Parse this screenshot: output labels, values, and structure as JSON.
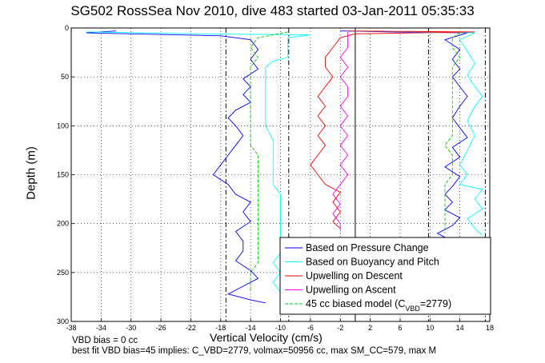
{
  "chart_data": {
    "type": "line",
    "title": "SG502 RossSea Nov 2010, dive 483 started 03-Jan-2011 05:35:33",
    "xlabel": "Vertical Velocity (cm/s)",
    "ylabel": "Depth (m)",
    "xlim": [
      -38,
      18
    ],
    "ylim": [
      0,
      300
    ],
    "y_reversed": true,
    "grid": true,
    "legend_placement": "bottom-right",
    "xticks": [
      "-38",
      "-34",
      "-30",
      "-26",
      "-22",
      "-18",
      "-14",
      "-10",
      "-6",
      "-2",
      "2",
      "6",
      "10",
      "14",
      "18"
    ],
    "yticks": [
      "0",
      "50",
      "100",
      "150",
      "200",
      "250",
      "300"
    ],
    "vertical_lines": [
      {
        "x": -17.3,
        "style": "dash-dot"
      },
      {
        "x": -8.9,
        "style": "dash-dot"
      },
      {
        "x": 0,
        "style": "solid"
      },
      {
        "x": 9.8,
        "style": "dash-dot"
      },
      {
        "x": 17.4,
        "style": "dash-dot"
      }
    ],
    "series": [
      {
        "name": "Based on Pressure Change",
        "color": "#0000ff",
        "descent": [
          [
            -32,
            3
          ],
          [
            -36,
            5
          ],
          [
            -30,
            6
          ],
          [
            -18,
            8
          ],
          [
            -14,
            12
          ],
          [
            -13,
            22
          ],
          [
            -14,
            32
          ],
          [
            -13,
            42
          ],
          [
            -15,
            52
          ],
          [
            -14,
            60
          ],
          [
            -15,
            68
          ],
          [
            -14,
            76
          ],
          [
            -16,
            84
          ],
          [
            -17,
            92
          ],
          [
            -16,
            100
          ],
          [
            -15,
            110
          ],
          [
            -16,
            120
          ],
          [
            -17,
            130
          ],
          [
            -18,
            140
          ],
          [
            -19,
            150
          ],
          [
            -17,
            160
          ],
          [
            -16,
            170
          ],
          [
            -14,
            178
          ],
          [
            -15,
            188
          ],
          [
            -14,
            198
          ],
          [
            -16,
            208
          ],
          [
            -15,
            218
          ],
          [
            -15,
            228
          ],
          [
            -16,
            238
          ],
          [
            -14,
            248
          ],
          [
            -13,
            256
          ],
          [
            -15,
            264
          ],
          [
            -17,
            272
          ],
          [
            -14,
            278
          ],
          [
            -12,
            281
          ]
        ],
        "ascent": [
          [
            -2,
            3
          ],
          [
            5,
            4
          ],
          [
            15,
            5
          ],
          [
            12,
            12
          ],
          [
            14,
            22
          ],
          [
            13,
            32
          ],
          [
            14,
            42
          ],
          [
            13,
            50
          ],
          [
            14,
            60
          ],
          [
            15,
            70
          ],
          [
            14,
            80
          ],
          [
            13,
            92
          ],
          [
            14,
            102
          ],
          [
            15,
            112
          ],
          [
            13,
            122
          ],
          [
            14,
            132
          ],
          [
            12,
            142
          ],
          [
            14,
            152
          ],
          [
            13,
            162
          ],
          [
            12,
            170
          ],
          [
            13,
            178
          ],
          [
            12,
            186
          ],
          [
            14,
            194
          ],
          [
            13,
            202
          ],
          [
            11,
            210
          ],
          [
            12,
            214
          ]
        ]
      },
      {
        "name": "Based on Buoyancy and Pitch",
        "color": "#00ffff",
        "descent": [
          [
            -36,
            4
          ],
          [
            -20,
            6
          ],
          [
            -6,
            7
          ],
          [
            -9,
            10
          ],
          [
            -9,
            20
          ],
          [
            -9,
            30
          ],
          [
            -11,
            34
          ],
          [
            -12,
            40
          ],
          [
            -12,
            55
          ],
          [
            -12,
            70
          ],
          [
            -12,
            85
          ],
          [
            -12,
            100
          ],
          [
            -11,
            115
          ],
          [
            -11,
            130
          ],
          [
            -11,
            145
          ],
          [
            -11,
            160
          ],
          [
            -10,
            170
          ],
          [
            -10,
            185
          ],
          [
            -10,
            200
          ],
          [
            -10,
            215
          ],
          [
            -10,
            230
          ],
          [
            -11,
            240
          ],
          [
            -10,
            250
          ],
          [
            -11,
            260
          ],
          [
            -10,
            270
          ],
          [
            -10,
            278
          ],
          [
            -8,
            280
          ]
        ],
        "ascent": [
          [
            -1,
            3
          ],
          [
            10,
            4
          ],
          [
            16,
            5
          ],
          [
            14,
            12
          ],
          [
            15,
            24
          ],
          [
            16,
            36
          ],
          [
            15,
            48
          ],
          [
            16,
            60
          ],
          [
            17,
            70
          ],
          [
            16,
            80
          ],
          [
            15,
            95
          ],
          [
            16,
            110
          ],
          [
            15,
            125
          ],
          [
            14,
            140
          ],
          [
            15,
            150
          ],
          [
            14,
            160
          ],
          [
            17,
            165
          ],
          [
            16,
            175
          ],
          [
            17,
            185
          ],
          [
            15,
            195
          ],
          [
            16,
            205
          ],
          [
            17,
            212
          ]
        ]
      },
      {
        "name": "Upwelling on Descent",
        "color": "#ff0000",
        "descent": [
          [
            -1,
            3
          ],
          [
            16,
            4
          ],
          [
            0,
            6
          ],
          [
            -2,
            10
          ],
          [
            -3,
            20
          ],
          [
            -4,
            30
          ],
          [
            -4,
            40
          ],
          [
            -3,
            50
          ],
          [
            -4,
            60
          ],
          [
            -5,
            70
          ],
          [
            -4,
            80
          ],
          [
            -5,
            90
          ],
          [
            -4,
            100
          ],
          [
            -5,
            110
          ],
          [
            -4,
            120
          ],
          [
            -5,
            130
          ],
          [
            -6,
            140
          ],
          [
            -5,
            150
          ],
          [
            -4,
            160
          ],
          [
            -2,
            168
          ],
          [
            -3,
            178
          ],
          [
            -2,
            188
          ],
          [
            -3,
            198
          ],
          [
            -2,
            205
          ]
        ]
      },
      {
        "name": "Upwelling on Ascent",
        "color": "#ff00ff",
        "ascent": [
          [
            -1,
            4
          ],
          [
            -1,
            10
          ],
          [
            -1,
            20
          ],
          [
            -2,
            30
          ],
          [
            -1,
            40
          ],
          [
            -2,
            50
          ],
          [
            -1,
            60
          ],
          [
            -1,
            70
          ],
          [
            -2,
            80
          ],
          [
            -1,
            90
          ],
          [
            -2,
            100
          ],
          [
            -1,
            110
          ],
          [
            -2,
            120
          ],
          [
            -1,
            130
          ],
          [
            -2,
            140
          ],
          [
            -1,
            150
          ],
          [
            -2,
            160
          ],
          [
            -3,
            170
          ],
          [
            -2,
            180
          ],
          [
            -3,
            190
          ],
          [
            -2,
            200
          ],
          [
            -2,
            208
          ]
        ]
      },
      {
        "name": "45 cc biased model (C_VBD=2779)",
        "color": "#00cc00",
        "descent": [
          [
            -9,
            4
          ],
          [
            -13,
            10
          ],
          [
            -14,
            20
          ],
          [
            -13,
            30
          ],
          [
            -14,
            40
          ],
          [
            -14,
            50
          ],
          [
            -14,
            60
          ],
          [
            -14,
            70
          ],
          [
            -14,
            80
          ],
          [
            -14,
            90
          ],
          [
            -14,
            100
          ],
          [
            -14,
            110
          ],
          [
            -14,
            120
          ],
          [
            -13,
            130
          ],
          [
            -13,
            140
          ],
          [
            -13,
            150
          ],
          [
            -13,
            160
          ],
          [
            -13,
            170
          ],
          [
            -13,
            180
          ],
          [
            -13,
            190
          ],
          [
            -13,
            200
          ],
          [
            -13,
            210
          ],
          [
            -13,
            220
          ],
          [
            -13,
            230
          ],
          [
            -13,
            240
          ],
          [
            -14,
            250
          ],
          [
            -14,
            260
          ],
          [
            -14,
            270
          ]
        ],
        "ascent": [
          [
            14,
            5
          ],
          [
            13,
            10
          ],
          [
            13,
            20
          ],
          [
            14,
            30
          ],
          [
            13,
            40
          ],
          [
            13,
            50
          ],
          [
            13,
            60
          ],
          [
            13,
            70
          ],
          [
            13,
            80
          ],
          [
            13,
            90
          ],
          [
            13,
            100
          ],
          [
            13,
            110
          ],
          [
            12,
            120
          ],
          [
            13,
            130
          ],
          [
            13,
            140
          ],
          [
            13,
            150
          ],
          [
            12,
            160
          ],
          [
            12,
            170
          ],
          [
            12,
            180
          ],
          [
            12,
            190
          ],
          [
            12,
            200
          ],
          [
            12,
            210
          ]
        ]
      }
    ]
  },
  "legend": {
    "entries": [
      {
        "label": "Based on Pressure Change",
        "color": "#0000ff",
        "style": "solid"
      },
      {
        "label": "Based on Buoyancy and Pitch",
        "color": "#00ffff",
        "style": "solid"
      },
      {
        "label": "Upwelling on Descent",
        "color": "#ff0000",
        "style": "solid"
      },
      {
        "label": "Upwelling on Ascent",
        "color": "#ff00ff",
        "style": "solid"
      },
      {
        "label": "45 cc biased model (C",
        "sub": "VBD",
        "suffix": "=2779)",
        "color": "#00cc00",
        "style": "dashed"
      }
    ]
  },
  "footer": {
    "line1": "VBD bias = 0 cc",
    "line2": "best fit VBD bias=45 implies: C_VBD=2779, volmax=50956 cc, max SM_CC=579, max M"
  }
}
